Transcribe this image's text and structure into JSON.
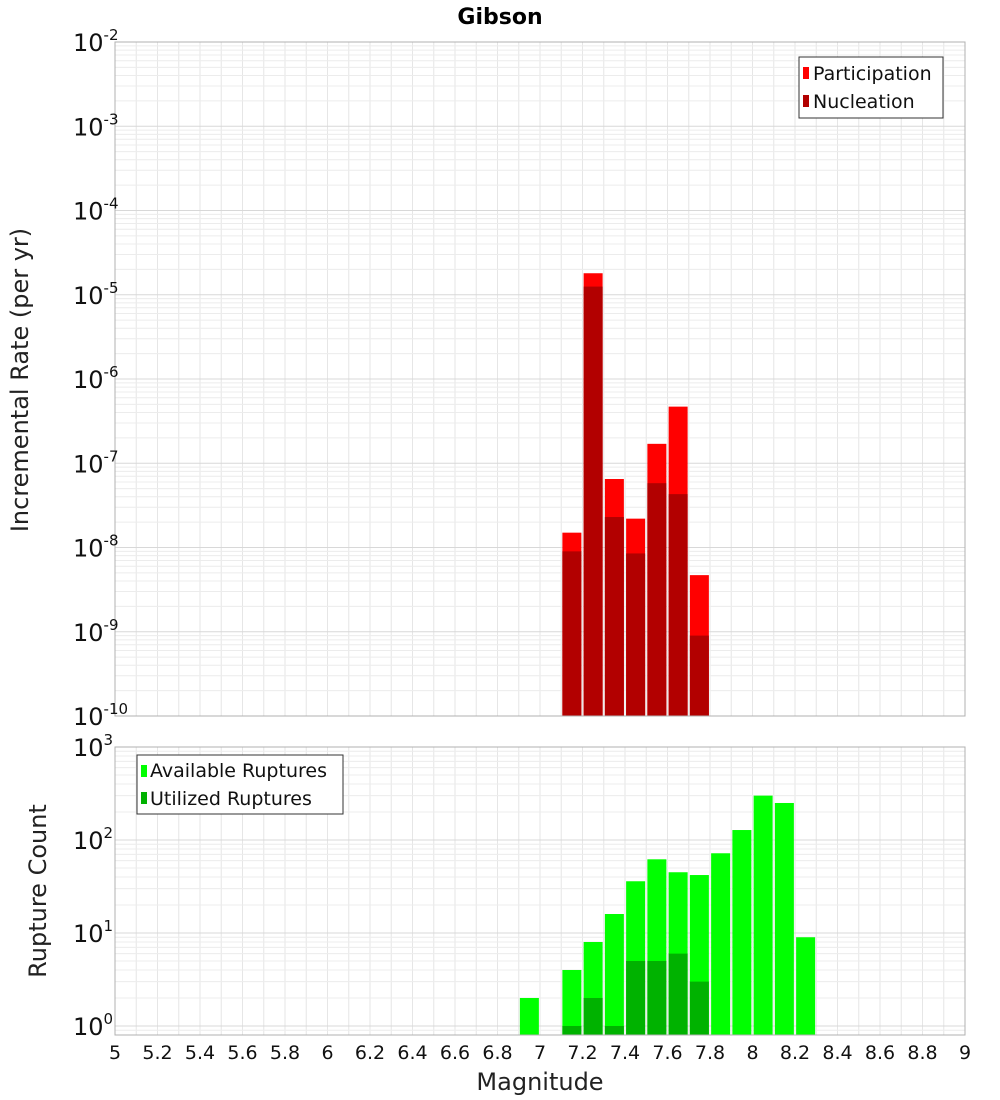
{
  "title": "Gibson",
  "chart_data": [
    {
      "type": "bar",
      "panel": "top",
      "ylabel": "Incremental Rate (per yr)",
      "yscale": "log",
      "ylim": [
        1e-10,
        0.01
      ],
      "xlim": [
        5,
        9
      ],
      "y_ticks": [
        {
          "base": "10",
          "exp": "-2"
        },
        {
          "base": "10",
          "exp": "-3"
        },
        {
          "base": "10",
          "exp": "-4"
        },
        {
          "base": "10",
          "exp": "-5"
        },
        {
          "base": "10",
          "exp": "-6"
        },
        {
          "base": "10",
          "exp": "-7"
        },
        {
          "base": "10",
          "exp": "-8"
        },
        {
          "base": "10",
          "exp": "-9"
        },
        {
          "base": "10",
          "exp": "-10"
        }
      ],
      "x": [
        7.15,
        7.25,
        7.35,
        7.45,
        7.55,
        7.65,
        7.75
      ],
      "series": [
        {
          "name": "Participation",
          "color": "#ff0000",
          "values": [
            1.5e-08,
            1.8e-05,
            6.5e-08,
            2.2e-08,
            1.7e-07,
            4.7e-07,
            4.7e-09
          ]
        },
        {
          "name": "Nucleation",
          "color": "#b20000",
          "values": [
            9e-09,
            1.25e-05,
            2.3e-08,
            8.5e-09,
            5.8e-08,
            4.3e-08,
            9e-10
          ]
        }
      ],
      "legend": {
        "placement": "top-right",
        "entries": [
          "Participation",
          "Nucleation"
        ]
      },
      "grid": true
    },
    {
      "type": "bar",
      "panel": "bottom",
      "xlabel": "Magnitude",
      "ylabel": "Rupture Count",
      "yscale": "log",
      "ylim": [
        0.8,
        1000
      ],
      "xlim": [
        5,
        9
      ],
      "y_ticks": [
        {
          "base": "10",
          "exp": "3"
        },
        {
          "base": "10",
          "exp": "2"
        },
        {
          "base": "10",
          "exp": "1"
        },
        {
          "base": "10",
          "exp": "0"
        }
      ],
      "x_ticks": [
        "5",
        "5.2",
        "5.4",
        "5.6",
        "5.8",
        "6",
        "6.2",
        "6.4",
        "6.6",
        "6.8",
        "7",
        "7.2",
        "7.4",
        "7.6",
        "7.8",
        "8",
        "8.2",
        "8.4",
        "8.6",
        "8.8",
        "9"
      ],
      "x": [
        6.95,
        7.15,
        7.25,
        7.35,
        7.45,
        7.55,
        7.65,
        7.75,
        7.85,
        7.95,
        8.05,
        8.15,
        8.25
      ],
      "series": [
        {
          "name": "Available Ruptures",
          "color": "#00ff00",
          "values": [
            2,
            4,
            8,
            16,
            36,
            62,
            45,
            42,
            72,
            128,
            300,
            250,
            9
          ]
        },
        {
          "name": "Utilized Ruptures",
          "color": "#00b200",
          "values": [
            0,
            1,
            2,
            1,
            5,
            5,
            6,
            3,
            0,
            0,
            0,
            0,
            0
          ]
        }
      ],
      "legend": {
        "placement": "top-left",
        "entries": [
          "Available Ruptures",
          "Utilized Ruptures"
        ]
      },
      "grid": true
    }
  ]
}
